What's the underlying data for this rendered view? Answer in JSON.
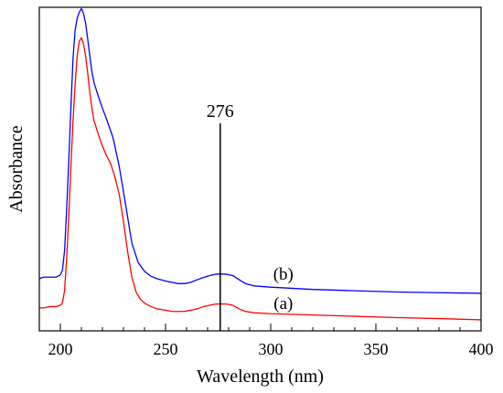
{
  "chart_data": {
    "type": "line",
    "title": "",
    "xlabel": "Wavelength (nm)",
    "ylabel": "Absorbance",
    "xlim": [
      190,
      400
    ],
    "ylim": [
      0,
      1
    ],
    "x_ticks": [
      200,
      250,
      300,
      350,
      400
    ],
    "x_tick_labels": [
      "200",
      "250",
      "300",
      "350",
      "400"
    ],
    "y_ticks_shown": false,
    "grid": false,
    "legend": "none",
    "annotation": {
      "x": 276,
      "text": "276"
    },
    "series": [
      {
        "label": "(b)",
        "color": "#0000ff",
        "points": [
          [
            190,
            0.161
          ],
          [
            192,
            0.166
          ],
          [
            195,
            0.166
          ],
          [
            198,
            0.166
          ],
          [
            200,
            0.173
          ],
          [
            201,
            0.188
          ],
          [
            202,
            0.248
          ],
          [
            203,
            0.376
          ],
          [
            204,
            0.526
          ],
          [
            205,
            0.688
          ],
          [
            206,
            0.839
          ],
          [
            207,
            0.929
          ],
          [
            208,
            0.966
          ],
          [
            209,
            0.985
          ],
          [
            210,
            0.996
          ],
          [
            211,
            0.981
          ],
          [
            212,
            0.951
          ],
          [
            213,
            0.902
          ],
          [
            214,
            0.85
          ],
          [
            215,
            0.801
          ],
          [
            216,
            0.767
          ],
          [
            218,
            0.726
          ],
          [
            220,
            0.688
          ],
          [
            222,
            0.654
          ],
          [
            225,
            0.598
          ],
          [
            228,
            0.508
          ],
          [
            231,
            0.391
          ],
          [
            234,
            0.271
          ],
          [
            237,
            0.211
          ],
          [
            240,
            0.184
          ],
          [
            243,
            0.169
          ],
          [
            246,
            0.161
          ],
          [
            250,
            0.154
          ],
          [
            253,
            0.15
          ],
          [
            256,
            0.146
          ],
          [
            259,
            0.146
          ],
          [
            262,
            0.15
          ],
          [
            265,
            0.158
          ],
          [
            268,
            0.165
          ],
          [
            271,
            0.171
          ],
          [
            274,
            0.175
          ],
          [
            276,
            0.176
          ],
          [
            279,
            0.175
          ],
          [
            282,
            0.171
          ],
          [
            285,
            0.158
          ],
          [
            288,
            0.146
          ],
          [
            292,
            0.139
          ],
          [
            300,
            0.135
          ],
          [
            320,
            0.128
          ],
          [
            340,
            0.124
          ],
          [
            360,
            0.12
          ],
          [
            380,
            0.118
          ],
          [
            400,
            0.116
          ]
        ]
      },
      {
        "label": "(a)",
        "color": "#ff0000",
        "points": [
          [
            190,
            0.071
          ],
          [
            192,
            0.071
          ],
          [
            195,
            0.075
          ],
          [
            198,
            0.075
          ],
          [
            200,
            0.079
          ],
          [
            201,
            0.086
          ],
          [
            202,
            0.124
          ],
          [
            203,
            0.225
          ],
          [
            204,
            0.353
          ],
          [
            205,
            0.504
          ],
          [
            206,
            0.647
          ],
          [
            207,
            0.76
          ],
          [
            208,
            0.85
          ],
          [
            209,
            0.895
          ],
          [
            210,
            0.906
          ],
          [
            211,
            0.887
          ],
          [
            212,
            0.85
          ],
          [
            213,
            0.797
          ],
          [
            214,
            0.737
          ],
          [
            215,
            0.688
          ],
          [
            216,
            0.65
          ],
          [
            218,
            0.609
          ],
          [
            220,
            0.571
          ],
          [
            222,
            0.541
          ],
          [
            224,
            0.515
          ],
          [
            226,
            0.474
          ],
          [
            228,
            0.421
          ],
          [
            230,
            0.338
          ],
          [
            232,
            0.244
          ],
          [
            234,
            0.166
          ],
          [
            236,
            0.12
          ],
          [
            238,
            0.098
          ],
          [
            240,
            0.086
          ],
          [
            243,
            0.075
          ],
          [
            246,
            0.068
          ],
          [
            250,
            0.064
          ],
          [
            253,
            0.06
          ],
          [
            256,
            0.06
          ],
          [
            259,
            0.06
          ],
          [
            262,
            0.064
          ],
          [
            265,
            0.068
          ],
          [
            268,
            0.075
          ],
          [
            271,
            0.079
          ],
          [
            274,
            0.083
          ],
          [
            276,
            0.083
          ],
          [
            279,
            0.083
          ],
          [
            282,
            0.079
          ],
          [
            285,
            0.068
          ],
          [
            288,
            0.06
          ],
          [
            292,
            0.056
          ],
          [
            300,
            0.053
          ],
          [
            320,
            0.049
          ],
          [
            340,
            0.045
          ],
          [
            360,
            0.041
          ],
          [
            380,
            0.038
          ],
          [
            400,
            0.034
          ]
        ]
      }
    ]
  }
}
